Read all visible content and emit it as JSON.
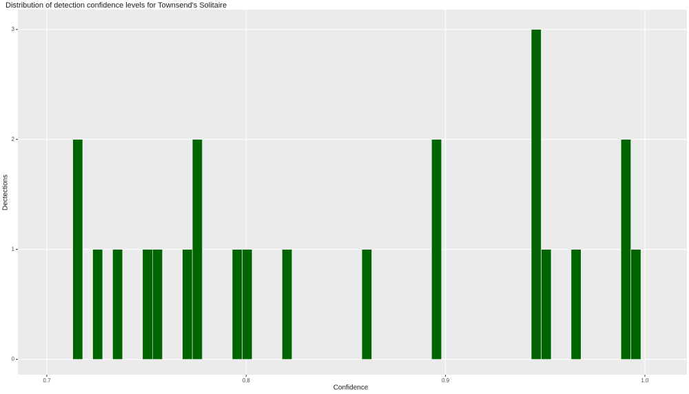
{
  "chart_data": {
    "type": "histogram",
    "title": "Distribution of detection confidence levels for Townsend's Solitaire",
    "x_label": "Confidence",
    "y_label": "Dectections",
    "bins": [
      0.713,
      0.718,
      0.723,
      0.728,
      0.733,
      0.738,
      0.743,
      0.748,
      0.753,
      0.758,
      0.763,
      0.768,
      0.773,
      0.778,
      0.783,
      0.788,
      0.793,
      0.798,
      0.803,
      0.808,
      0.813,
      0.818,
      0.823,
      0.828,
      0.833,
      0.838,
      0.843,
      0.848,
      0.853,
      0.858,
      0.863,
      0.868,
      0.873,
      0.878,
      0.883,
      0.888,
      0.893,
      0.898,
      0.903,
      0.908,
      0.913,
      0.918,
      0.923,
      0.928,
      0.933,
      0.938,
      0.943,
      0.948,
      0.953,
      0.958,
      0.963,
      0.968,
      0.973,
      0.978,
      0.983,
      0.988,
      0.993,
      0.998
    ],
    "values": [
      2,
      0,
      1,
      0,
      1,
      0,
      0,
      1,
      1,
      0,
      0,
      1,
      2,
      0,
      0,
      0,
      1,
      1,
      0,
      0,
      0,
      1,
      0,
      0,
      0,
      0,
      0,
      0,
      0,
      1,
      0,
      0,
      0,
      0,
      0,
      0,
      2,
      0,
      0,
      0,
      0,
      0,
      0,
      0,
      0,
      0,
      3,
      1,
      0,
      0,
      1,
      0,
      0,
      0,
      0,
      2,
      1
    ],
    "color": "#006400",
    "xlim": [
      0.6855,
      1.0211
    ],
    "xticks": [
      0.7,
      0.8,
      0.9,
      {
        "value": 1,
        "label": "1.0"
      }
    ],
    "ylim": [
      -0.14,
      3.18
    ],
    "yticks": [
      0,
      1,
      2,
      3
    ],
    "grid": true
  }
}
